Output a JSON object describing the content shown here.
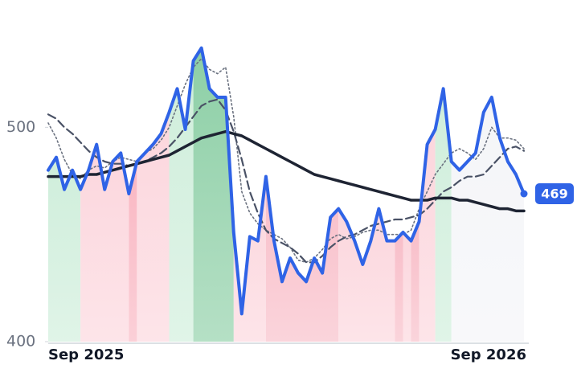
{
  "chart_data": {
    "type": "line",
    "categories": [
      "Sep 2025",
      null,
      null,
      null,
      null,
      null,
      null,
      null,
      null,
      null,
      null,
      null,
      null,
      null,
      null,
      null,
      null,
      null,
      null,
      null,
      null,
      null,
      null,
      null,
      null,
      null,
      null,
      null,
      null,
      null,
      null,
      null,
      null,
      null,
      null,
      null,
      null,
      null,
      null,
      null,
      null,
      null,
      null,
      null,
      null,
      null,
      null,
      null,
      null,
      null,
      null,
      null,
      null,
      null,
      null,
      null,
      null,
      null,
      null,
      "Sep 2026"
    ],
    "ylim": [
      400,
      550
    ],
    "yticks": [
      400,
      500
    ],
    "series": [
      {
        "color": "#2f63e6",
        "style": "solid",
        "width": 4,
        "values": [
          480,
          486,
          471,
          480,
          471,
          480,
          492,
          471,
          484,
          488,
          469,
          484,
          488,
          492,
          497,
          507,
          518,
          499,
          531,
          537,
          518,
          514,
          514,
          451,
          413,
          449,
          447,
          477,
          447,
          428,
          439,
          432,
          428,
          439,
          432,
          458,
          462,
          456,
          447,
          436,
          447,
          462,
          447,
          447,
          451,
          447,
          456,
          492,
          499,
          518,
          484,
          480,
          484,
          488,
          507,
          514,
          495,
          484,
          478,
          469
        ],
        "value_labels": [
          null,
          null,
          null,
          null,
          null,
          null,
          null,
          null,
          null,
          null,
          null,
          null,
          null,
          null,
          null,
          null,
          null,
          null,
          null,
          null,
          null,
          null,
          null,
          null,
          null,
          null,
          null,
          null,
          null,
          null,
          null,
          null,
          null,
          null,
          null,
          null,
          null,
          null,
          null,
          null,
          null,
          null,
          null,
          null,
          null,
          null,
          null,
          null,
          null,
          null,
          null,
          null,
          null,
          null,
          null,
          null,
          null,
          null,
          null,
          "469"
        ]
      },
      {
        "color": "#1e2433",
        "style": "solid",
        "width": 3.5,
        "values": [
          477,
          477,
          477,
          477,
          477,
          478,
          478,
          479,
          480,
          481,
          482,
          483,
          484,
          485,
          486,
          487,
          489,
          491,
          493,
          495,
          496,
          497,
          498,
          497,
          496,
          494,
          492,
          490,
          488,
          486,
          484,
          482,
          480,
          478,
          477,
          476,
          475,
          474,
          473,
          472,
          471,
          470,
          469,
          468,
          467,
          466,
          466,
          466,
          467,
          467,
          467,
          466,
          466,
          465,
          464,
          463,
          462,
          462,
          461,
          461
        ]
      },
      {
        "color": "#4a5266",
        "style": "dashed",
        "width": 2.2,
        "values": [
          506,
          504,
          500,
          497,
          493,
          489,
          486,
          484,
          483,
          483,
          482,
          483,
          484,
          486,
          488,
          491,
          495,
          500,
          505,
          510,
          512,
          513,
          508,
          498,
          485,
          470,
          460,
          452,
          448,
          446,
          444,
          441,
          437,
          437,
          440,
          444,
          447,
          449,
          450,
          452,
          454,
          455,
          456,
          457,
          457,
          458,
          459,
          462,
          466,
          470,
          472,
          475,
          477,
          477,
          478,
          482,
          486,
          490,
          491,
          489
        ]
      },
      {
        "color": "#6b7280",
        "style": "dotted",
        "width": 1.6,
        "values": [
          502,
          495,
          485,
          478,
          476,
          480,
          482,
          481,
          484,
          486,
          485,
          484,
          488,
          490,
          494,
          500,
          510,
          520,
          528,
          532,
          527,
          525,
          528,
          505,
          470,
          460,
          455,
          452,
          450,
          448,
          444,
          438,
          437,
          439,
          443,
          448,
          450,
          448,
          449,
          451,
          452,
          452,
          450,
          450,
          450,
          452,
          462,
          470,
          478,
          483,
          488,
          490,
          488,
          485,
          490,
          500,
          495,
          495,
          494,
          490
        ]
      }
    ],
    "zones": [
      {
        "from": 0,
        "to": 4,
        "color": "#cfeedb"
      },
      {
        "from": 4,
        "to": 10,
        "color": "#fcd6dd"
      },
      {
        "from": 10,
        "to": 11,
        "color": "#f9b6c2"
      },
      {
        "from": 11,
        "to": 15,
        "color": "#fcd6dd"
      },
      {
        "from": 15,
        "to": 18,
        "color": "#cfeedb"
      },
      {
        "from": 18,
        "to": 23,
        "color": "#8dcfa6"
      },
      {
        "from": 23,
        "to": 27,
        "color": "#fcd6dd"
      },
      {
        "from": 27,
        "to": 36,
        "color": "#f8bdc8"
      },
      {
        "from": 36,
        "to": 43,
        "color": "#fcd6dd"
      },
      {
        "from": 43,
        "to": 44,
        "color": "#f8bdc8"
      },
      {
        "from": 44,
        "to": 45,
        "color": "#fcd6dd"
      },
      {
        "from": 45,
        "to": 46,
        "color": "#f8bdc8"
      },
      {
        "from": 46,
        "to": 48,
        "color": "#fcd6dd"
      },
      {
        "from": 48,
        "to": 50,
        "color": "#cfeedb"
      },
      {
        "from": 50,
        "to": 59,
        "color": "#f4f5f8"
      }
    ]
  }
}
